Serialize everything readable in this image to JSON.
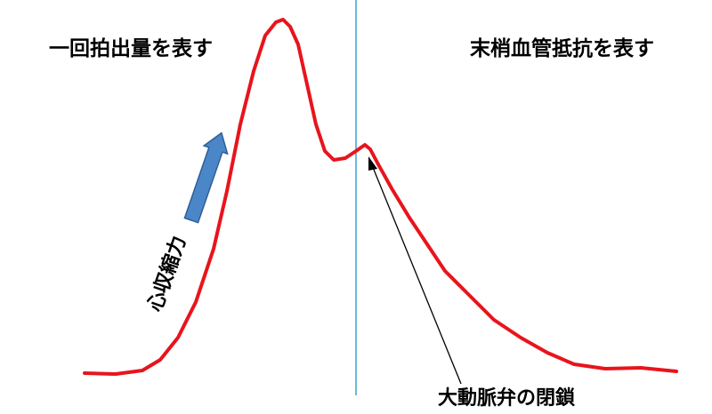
{
  "labels": {
    "left_heading": "一回拍出量を表す",
    "right_heading": "末梢血管抵抗を表す",
    "arrow_label": "心収縮力",
    "notch_label": "大動脈弁の閉鎖"
  }
}
